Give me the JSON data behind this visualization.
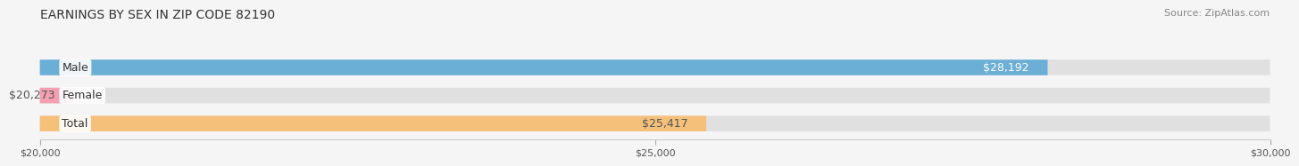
{
  "title": "EARNINGS BY SEX IN ZIP CODE 82190",
  "source_text": "Source: ZipAtlas.com",
  "categories": [
    "Male",
    "Female",
    "Total"
  ],
  "values": [
    28192,
    20273,
    25417
  ],
  "x_min": 20000,
  "x_max": 30000,
  "x_ticks": [
    20000,
    25000,
    30000
  ],
  "x_tick_labels": [
    "$20,000",
    "$25,000",
    "$30,000"
  ],
  "bar_colors": [
    "#6baed6",
    "#f4a0b0",
    "#f4c07a"
  ],
  "label_colors": [
    "#ffffff",
    "#555555",
    "#555555"
  ],
  "value_labels": [
    "$28,192",
    "$20,273",
    "$25,417"
  ],
  "background_color": "#f5f5f5",
  "bar_bg_color": "#e0e0e0",
  "title_fontsize": 10,
  "source_fontsize": 8,
  "label_fontsize": 9,
  "value_fontsize": 9,
  "tick_fontsize": 8
}
